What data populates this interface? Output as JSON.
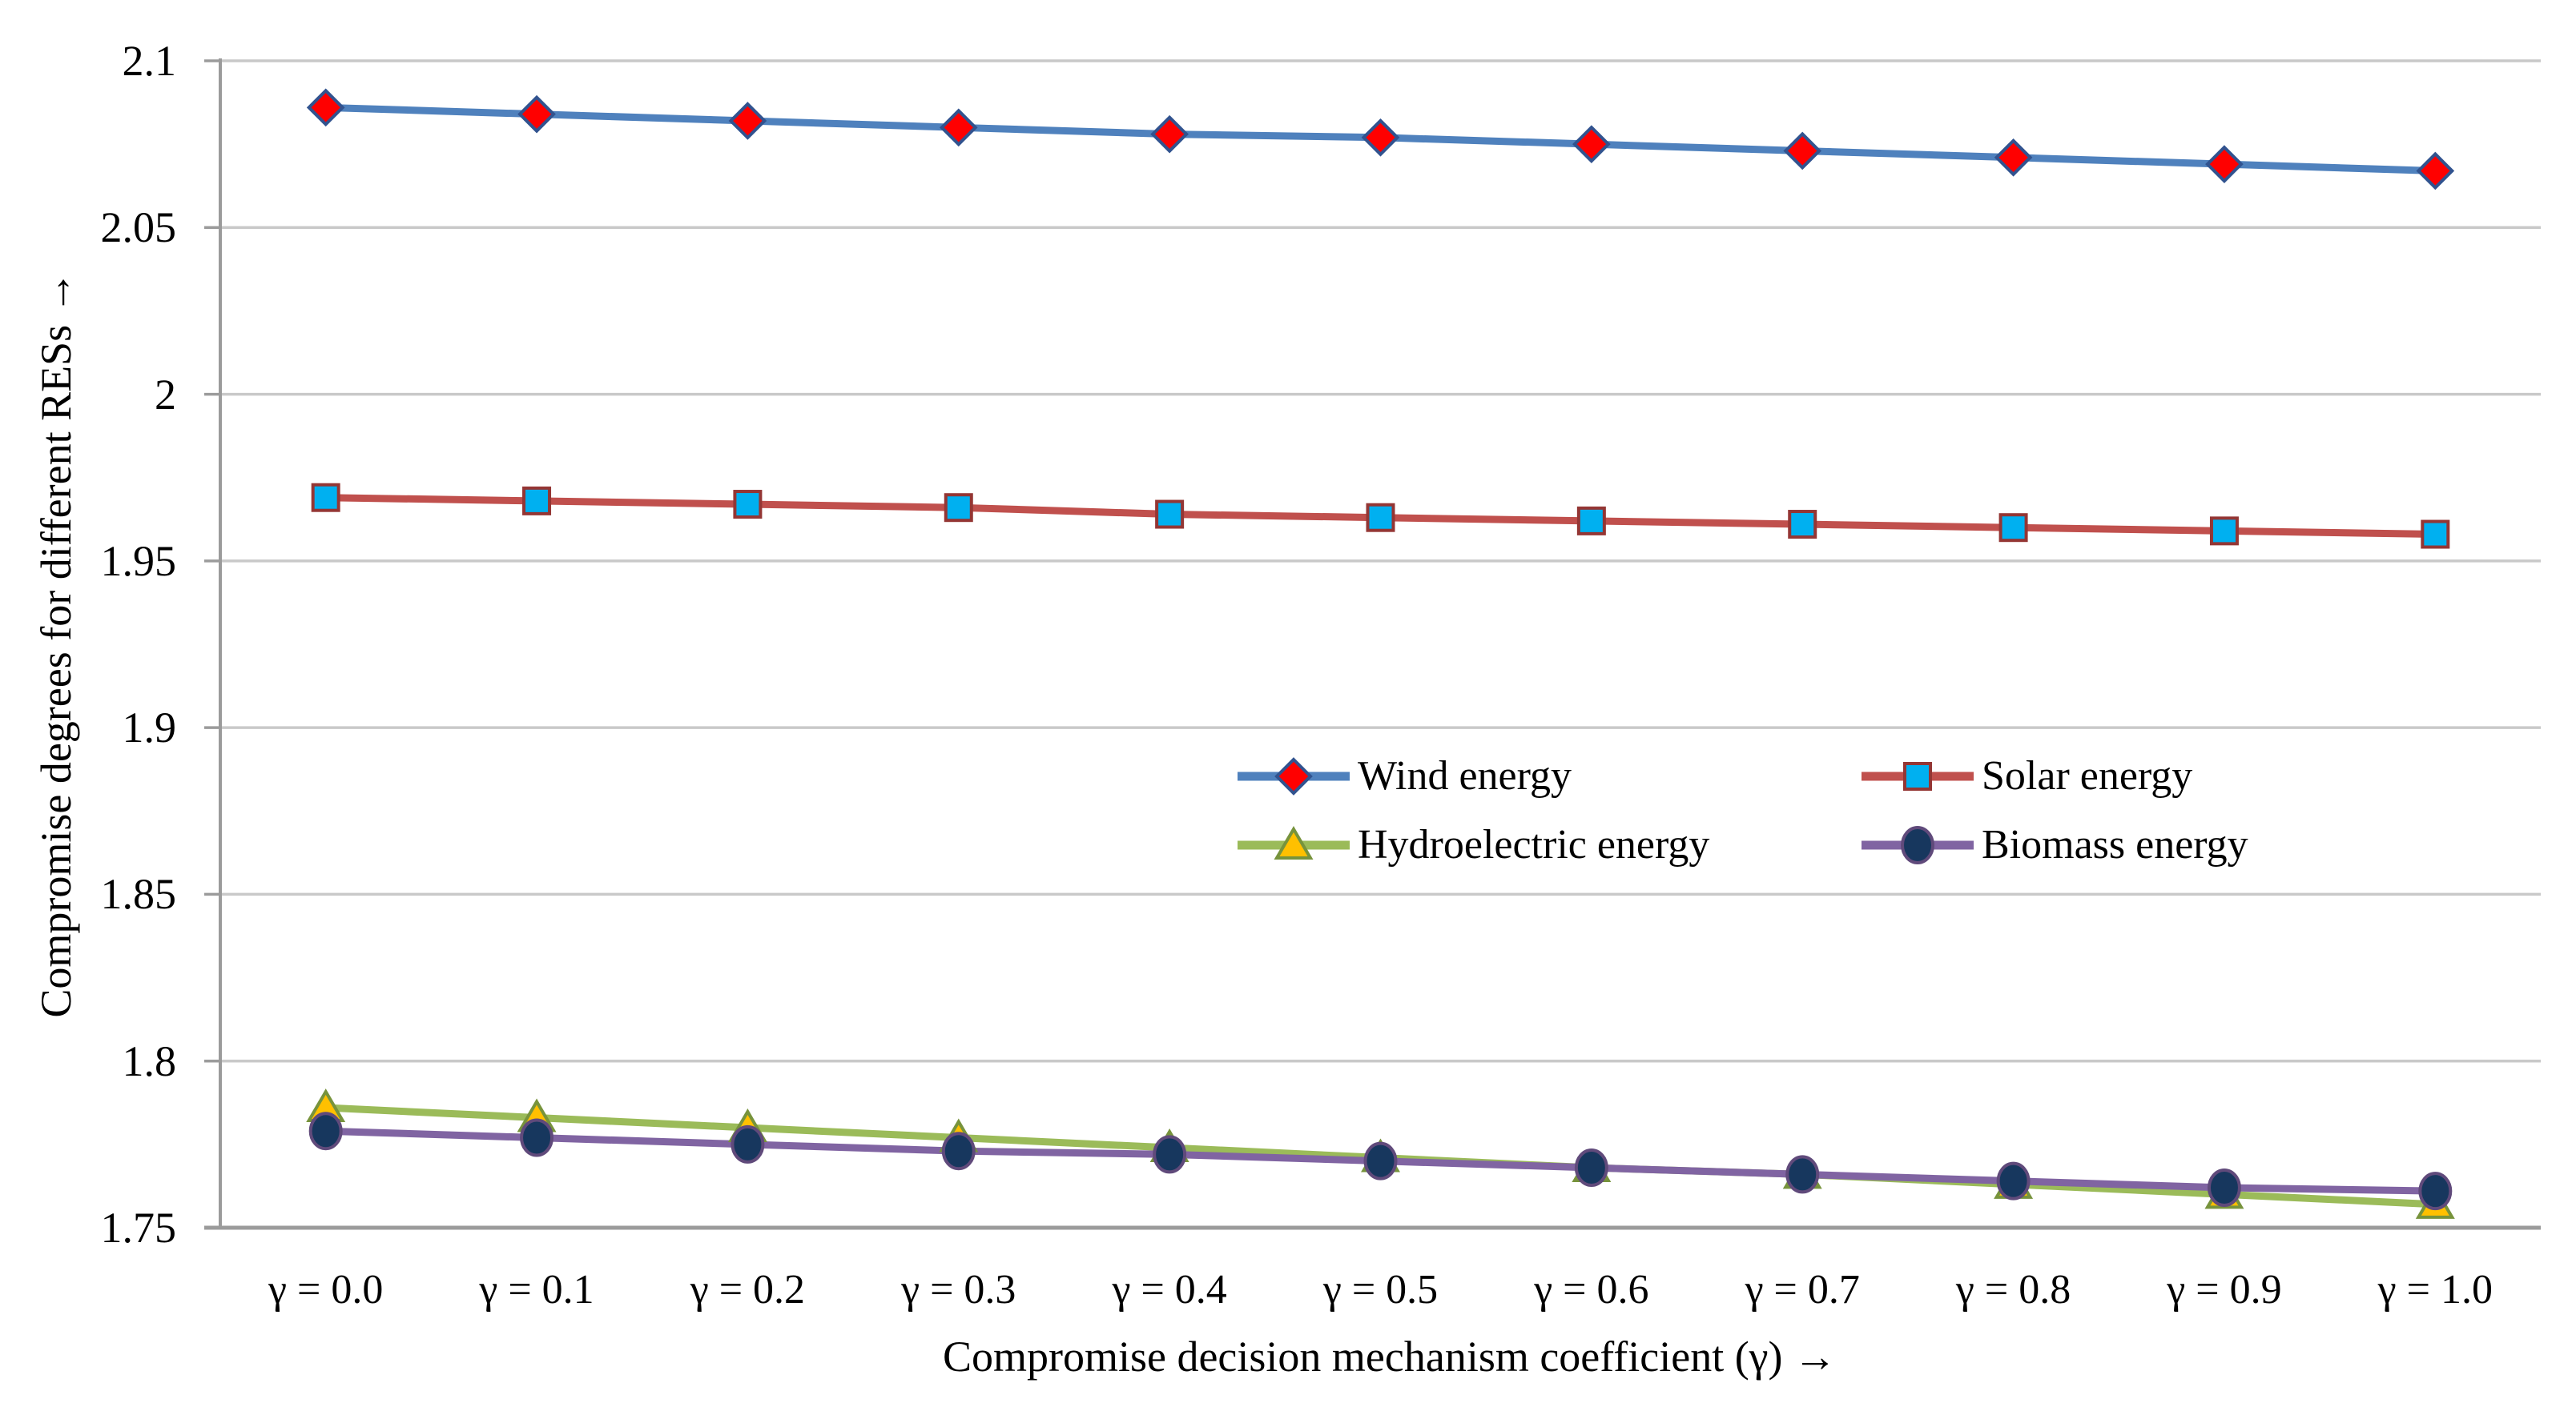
{
  "chart_data": {
    "type": "line",
    "title": "",
    "xlabel": "Compromise decision mechanism coefficient (γ)  →",
    "ylabel": "Compromise degrees for different RESs  →",
    "categories": [
      "γ = 0.0",
      "γ = 0.1",
      "γ = 0.2",
      "γ = 0.3",
      "γ = 0.4",
      "γ = 0.5",
      "γ = 0.6",
      "γ = 0.7",
      "γ = 0.8",
      "γ = 0.9",
      "γ = 1.0"
    ],
    "yticks": [
      "2.1",
      "2.05",
      "2",
      "1.95",
      "1.9",
      "1.85",
      "1.8",
      "1.75"
    ],
    "ylim": [
      1.75,
      2.1
    ],
    "grid": "horizontal",
    "legend_position": "inside-center",
    "colors": {
      "grid": "#C9C9C9",
      "axis": "#9B9B9B",
      "text": "#000000",
      "background": "#FFFFFF"
    },
    "series": [
      {
        "name": "Wind energy",
        "line_color": "#4F81BD",
        "marker": "diamond",
        "marker_color": "#FF0000",
        "marker_edge": "#31538F",
        "values": [
          2.086,
          2.084,
          2.082,
          2.08,
          2.078,
          2.077,
          2.075,
          2.073,
          2.071,
          2.069,
          2.067
        ]
      },
      {
        "name": "Solar energy",
        "line_color": "#C0504D",
        "marker": "square",
        "marker_color": "#00B0F0",
        "marker_edge": "#943634",
        "values": [
          1.969,
          1.968,
          1.967,
          1.966,
          1.964,
          1.963,
          1.962,
          1.961,
          1.96,
          1.959,
          1.958
        ]
      },
      {
        "name": "Hydroelectric energy",
        "line_color": "#9BBB59",
        "marker": "triangle",
        "marker_color": "#FFC000",
        "marker_edge": "#77933C",
        "values": [
          1.786,
          1.783,
          1.78,
          1.777,
          1.774,
          1.771,
          1.768,
          1.766,
          1.763,
          1.76,
          1.757
        ]
      },
      {
        "name": "Biomass energy",
        "line_color": "#8064A2",
        "marker": "circle",
        "marker_color": "#17375E",
        "marker_edge": "#604A7B",
        "values": [
          1.779,
          1.777,
          1.775,
          1.773,
          1.772,
          1.77,
          1.768,
          1.766,
          1.764,
          1.762,
          1.761
        ]
      }
    ]
  }
}
